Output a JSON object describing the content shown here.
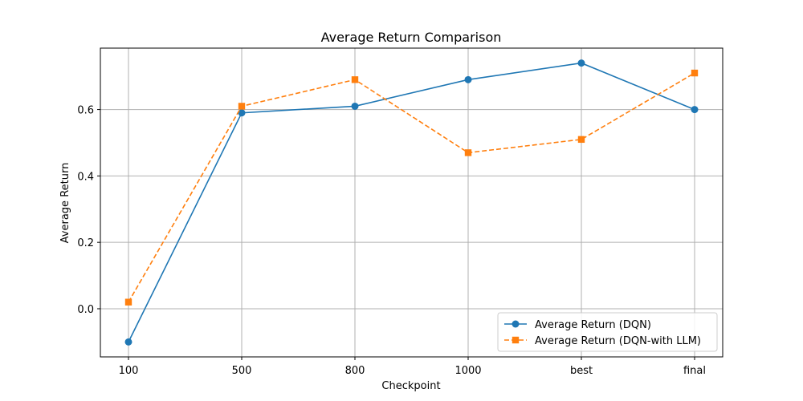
{
  "chart_data": {
    "type": "line",
    "title": "Average Return Comparison",
    "xlabel": "Checkpoint",
    "ylabel": "Average Return",
    "categories": [
      "100",
      "500",
      "800",
      "1000",
      "best",
      "final"
    ],
    "ylim": [
      -0.145,
      0.785
    ],
    "yticks": [
      "0.0",
      "0.2",
      "0.4",
      "0.6"
    ],
    "ytick_values": [
      0.0,
      0.2,
      0.4,
      0.6
    ],
    "grid": true,
    "legend_position": "lower-right",
    "series": [
      {
        "name": "Average Return (DQN)",
        "values": [
          -0.1,
          0.59,
          0.61,
          0.69,
          0.74,
          0.6
        ],
        "color": "#1f77b4",
        "marker": "circle",
        "linestyle": "solid"
      },
      {
        "name": "Average Return (DQN-with LLM)",
        "values": [
          0.02,
          0.61,
          0.69,
          0.47,
          0.51,
          0.71
        ],
        "color": "#ff7f0e",
        "marker": "square",
        "linestyle": "dashed"
      }
    ]
  }
}
